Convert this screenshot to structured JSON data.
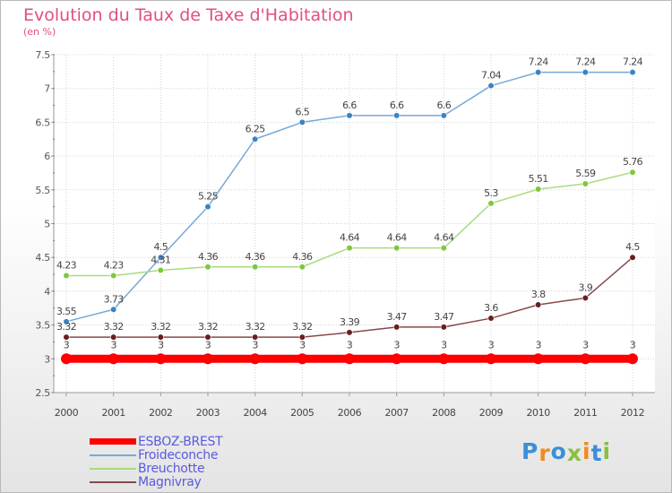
{
  "title": "Evolution du Taux de Taxe d'Habitation",
  "subtitle": "(en %)",
  "logo": {
    "text": "Proxiti",
    "letter_colors": [
      "#3a8fd8",
      "#f08a20",
      "#3a8fd8",
      "#88c040",
      "#f08a20",
      "#3a8fd8",
      "#88c040"
    ]
  },
  "chart_data": {
    "type": "line",
    "categories": [
      "2000",
      "2001",
      "2002",
      "2003",
      "2004",
      "2005",
      "2006",
      "2007",
      "2008",
      "2009",
      "2010",
      "2011",
      "2012"
    ],
    "ylim": [
      2.5,
      7.5
    ],
    "yticks": [
      "2.5",
      "3",
      "3.5",
      "4",
      "4.5",
      "5",
      "5.5",
      "6",
      "6.5",
      "7",
      "7.5"
    ],
    "grid": true,
    "legend_position": "bottom-left",
    "series": [
      {
        "name": "ESBOZ-BREST",
        "color": "#ff0000",
        "values": [
          3,
          3,
          3,
          3,
          3,
          3,
          3,
          3,
          3,
          3,
          3,
          3,
          3
        ],
        "labels": [
          "3",
          "3",
          "3",
          "3",
          "3",
          "3",
          "3",
          "3",
          "3",
          "3",
          "3",
          "3",
          "3"
        ]
      },
      {
        "name": "Froideconche",
        "color": "#78a8d8",
        "marker": "#3a84c4",
        "values": [
          3.55,
          3.73,
          4.5,
          5.25,
          6.25,
          6.5,
          6.6,
          6.6,
          6.6,
          7.04,
          7.24,
          7.24,
          7.24
        ],
        "labels": [
          "3.55",
          "3.73",
          "4.5",
          "5.25",
          "6.25",
          "6.5",
          "6.6",
          "6.6",
          "6.6",
          "7.04",
          "7.24",
          "7.24",
          "7.24"
        ]
      },
      {
        "name": "Breuchotte",
        "color": "#a8dc7c",
        "marker": "#7cc840",
        "values": [
          4.23,
          4.23,
          4.31,
          4.36,
          4.36,
          4.36,
          4.64,
          4.64,
          4.64,
          5.3,
          5.51,
          5.59,
          5.76
        ],
        "labels": [
          "4.23",
          "4.23",
          "4.31",
          "4.36",
          "4.36",
          "4.36",
          "4.64",
          "4.64",
          "4.64",
          "5.3",
          "5.51",
          "5.59",
          "5.76"
        ]
      },
      {
        "name": "Magnivray",
        "color": "#8a4848",
        "marker": "#6a1e1e",
        "values": [
          3.32,
          3.32,
          3.32,
          3.32,
          3.32,
          3.32,
          3.39,
          3.47,
          3.47,
          3.6,
          3.8,
          3.9,
          4.5
        ],
        "labels": [
          "3.32",
          "3.32",
          "3.32",
          "3.32",
          "3.32",
          "3.32",
          "3.39",
          "3.47",
          "3.47",
          "3.6",
          "3.8",
          "3.9",
          "4.5"
        ]
      }
    ]
  }
}
